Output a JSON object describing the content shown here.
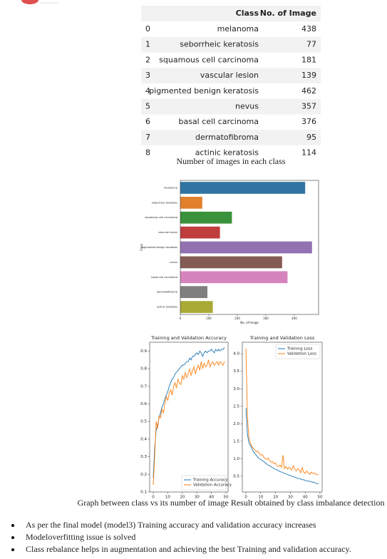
{
  "table": {
    "header": [
      "",
      "Class",
      "No. of Image"
    ],
    "rows": [
      [
        "0",
        "melanoma",
        "438"
      ],
      [
        "1",
        "seborrheic keratosis",
        "77"
      ],
      [
        "2",
        "squamous cell carcinoma",
        "181"
      ],
      [
        "3",
        "vascular lesion",
        "139"
      ],
      [
        "4",
        "pigmented benign keratosis",
        "462"
      ],
      [
        "5",
        "nevus",
        "357"
      ],
      [
        "6",
        "basal cell carcinoma",
        "376"
      ],
      [
        "7",
        "dermatofibroma",
        "95"
      ],
      [
        "8",
        "actinic keratosis",
        "114"
      ]
    ]
  },
  "table_caption": "Number of images in each class",
  "chart_data": [
    {
      "type": "barh",
      "xlabel": "No. of Image",
      "ylabel": "Class",
      "categories": [
        "melanoma",
        "seborrheic keratosis",
        "squamous cell carcinoma",
        "vascular lesion",
        "pigmented benign keratosis",
        "nevus",
        "basal cell carcinoma",
        "dermatofibroma",
        "actinic keratosis"
      ],
      "values": [
        438,
        77,
        181,
        139,
        462,
        357,
        376,
        95,
        114
      ],
      "colors": [
        "#3274a1",
        "#e1812c",
        "#3a923a",
        "#c03d3e",
        "#9372b2",
        "#845b53",
        "#d684bd",
        "#7f7f7f",
        "#a9aa35"
      ],
      "xlim": [
        0,
        485
      ],
      "xticks": [
        0,
        100,
        200,
        300,
        400
      ]
    },
    {
      "type": "line",
      "title": "Training and Validation Accuracy",
      "legend": "lower right",
      "x": [
        0,
        1,
        2,
        3,
        4,
        5,
        6,
        7,
        8,
        9,
        10,
        11,
        12,
        13,
        14,
        15,
        16,
        17,
        18,
        19,
        20,
        21,
        22,
        23,
        24,
        25,
        26,
        27,
        28,
        29,
        30,
        31,
        32,
        33,
        34,
        35,
        36,
        37,
        38,
        39,
        40,
        41,
        42,
        43,
        44,
        45,
        46,
        47,
        48,
        49
      ],
      "series": [
        {
          "name": "Training Accuracy",
          "color": "#1f77b4",
          "values": [
            0.18,
            0.35,
            0.45,
            0.48,
            0.52,
            0.55,
            0.58,
            0.6,
            0.63,
            0.65,
            0.67,
            0.7,
            0.72,
            0.74,
            0.75,
            0.77,
            0.78,
            0.79,
            0.8,
            0.81,
            0.82,
            0.82,
            0.83,
            0.84,
            0.84,
            0.86,
            0.85,
            0.87,
            0.87,
            0.88,
            0.89,
            0.88,
            0.9,
            0.89,
            0.87,
            0.89,
            0.9,
            0.89,
            0.9,
            0.9,
            0.91,
            0.9,
            0.89,
            0.91,
            0.9,
            0.91,
            0.9,
            0.91,
            0.91,
            0.92
          ]
        },
        {
          "name": "Validation Accuracy",
          "color": "#ff7f0e",
          "values": [
            0.14,
            0.3,
            0.5,
            0.46,
            0.53,
            0.52,
            0.57,
            0.55,
            0.6,
            0.64,
            0.62,
            0.66,
            0.68,
            0.65,
            0.7,
            0.72,
            0.69,
            0.74,
            0.72,
            0.71,
            0.76,
            0.74,
            0.78,
            0.75,
            0.77,
            0.8,
            0.76,
            0.79,
            0.81,
            0.77,
            0.8,
            0.82,
            0.79,
            0.84,
            0.8,
            0.83,
            0.81,
            0.82,
            0.85,
            0.81,
            0.83,
            0.84,
            0.82,
            0.83,
            0.84,
            0.82,
            0.84,
            0.83,
            0.82,
            0.84
          ]
        }
      ],
      "xlim": [
        -2.45,
        51.45
      ],
      "xticks": [
        0,
        10,
        20,
        30,
        40,
        50
      ],
      "ylim": [
        0.1,
        0.95
      ],
      "yticks": [
        0.1,
        0.2,
        0.3,
        0.4,
        0.5,
        0.6,
        0.7,
        0.8,
        0.9
      ]
    },
    {
      "type": "line",
      "title": "Training and Validation Loss",
      "legend": "upper right",
      "x": [
        0,
        1,
        2,
        3,
        4,
        5,
        6,
        7,
        8,
        9,
        10,
        11,
        12,
        13,
        14,
        15,
        16,
        17,
        18,
        19,
        20,
        21,
        22,
        23,
        24,
        25,
        26,
        27,
        28,
        29,
        30,
        31,
        32,
        33,
        34,
        35,
        36,
        37,
        38,
        39,
        40,
        41,
        42,
        43,
        44,
        45,
        46,
        47,
        48,
        49
      ],
      "series": [
        {
          "name": "Training Loss",
          "color": "#1f77b4",
          "values": [
            2.45,
            1.7,
            1.45,
            1.38,
            1.3,
            1.2,
            1.15,
            1.1,
            1.05,
            1.0,
            0.98,
            0.95,
            0.92,
            0.88,
            0.85,
            0.82,
            0.8,
            0.77,
            0.75,
            0.72,
            0.7,
            0.68,
            0.66,
            0.63,
            0.62,
            0.6,
            0.58,
            0.57,
            0.55,
            0.53,
            0.52,
            0.5,
            0.49,
            0.47,
            0.46,
            0.44,
            0.43,
            0.42,
            0.4,
            0.4,
            0.38,
            0.37,
            0.36,
            0.36,
            0.34,
            0.33,
            0.33,
            0.3,
            0.29,
            0.28
          ]
        },
        {
          "name": "Validation Loss",
          "color": "#ff7f0e",
          "values": [
            4.15,
            2.2,
            1.6,
            1.45,
            1.35,
            1.3,
            1.25,
            1.2,
            1.22,
            1.15,
            1.1,
            1.12,
            1.05,
            1.0,
            0.98,
            1.02,
            0.95,
            0.9,
            0.92,
            0.85,
            0.88,
            0.8,
            0.78,
            0.82,
            0.75,
            1.1,
            0.72,
            0.78,
            0.7,
            0.75,
            0.72,
            0.68,
            0.8,
            0.7,
            0.65,
            0.72,
            0.68,
            0.6,
            0.75,
            0.62,
            0.58,
            0.65,
            0.6,
            0.55,
            0.62,
            0.58,
            0.6,
            0.55,
            0.56,
            0.54
          ]
        }
      ],
      "xlim": [
        -2.45,
        51.45
      ],
      "xticks": [
        0,
        10,
        20,
        30,
        40,
        50
      ],
      "ylim": [
        0.05,
        4.33
      ],
      "yticks": [
        0.5,
        {
          "value": 1,
          "label": "1.0"
        },
        1.5,
        {
          "value": 2,
          "label": "2.0"
        },
        2.5,
        {
          "value": 3,
          "label": "3.0"
        },
        3.5,
        {
          "value": 4,
          "label": "4.0"
        }
      ]
    }
  ],
  "figure_caption": "Graph between class vs its number of image Result obtained by class imbalance detection",
  "bullets": [
    "As per the final model (model3) Training accuracy and validation accuracy increases",
    "Modeloverfitting issue is solved",
    "Class rebalance helps in augmentation and achieving the best Training and validation accuracy."
  ]
}
